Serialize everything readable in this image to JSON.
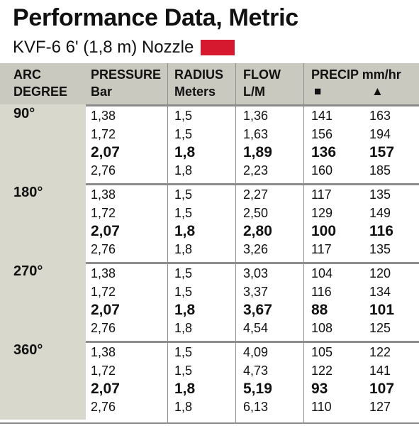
{
  "title": "Performance Data, Metric",
  "subtitle": "KVF-6  6' (1,8 m) Nozzle",
  "nozzle_color": "#d6192f",
  "header": {
    "arc": [
      "ARC",
      "DEGREE"
    ],
    "pressure": [
      "PRESSURE",
      "Bar"
    ],
    "radius": [
      "RADIUS",
      "Meters"
    ],
    "flow": [
      "FLOW",
      "L/M"
    ],
    "precip": "PRECIP mm/hr",
    "square_symbol": "■",
    "triangle_symbol": "▲"
  },
  "groups": [
    {
      "arc": "90°",
      "rows": [
        {
          "pressure": "1,38",
          "radius": "1,5",
          "flow": "1,36",
          "square": "141",
          "triangle": "163",
          "bold": false
        },
        {
          "pressure": "1,72",
          "radius": "1,5",
          "flow": "1,63",
          "square": "156",
          "triangle": "194",
          "bold": false
        },
        {
          "pressure": "2,07",
          "radius": "1,8",
          "flow": "1,89",
          "square": "136",
          "triangle": "157",
          "bold": true
        },
        {
          "pressure": "2,76",
          "radius": "1,8",
          "flow": "2,23",
          "square": "160",
          "triangle": "185",
          "bold": false
        }
      ]
    },
    {
      "arc": "180°",
      "rows": [
        {
          "pressure": "1,38",
          "radius": "1,5",
          "flow": "2,27",
          "square": "117",
          "triangle": "135",
          "bold": false
        },
        {
          "pressure": "1,72",
          "radius": "1,5",
          "flow": "2,50",
          "square": "129",
          "triangle": "149",
          "bold": false
        },
        {
          "pressure": "2,07",
          "radius": "1,8",
          "flow": "2,80",
          "square": "100",
          "triangle": "116",
          "bold": true
        },
        {
          "pressure": "2,76",
          "radius": "1,8",
          "flow": "3,26",
          "square": "117",
          "triangle": "135",
          "bold": false
        }
      ]
    },
    {
      "arc": "270°",
      "rows": [
        {
          "pressure": "1,38",
          "radius": "1,5",
          "flow": "3,03",
          "square": "104",
          "triangle": "120",
          "bold": false
        },
        {
          "pressure": "1,72",
          "radius": "1,5",
          "flow": "3,37",
          "square": "116",
          "triangle": "134",
          "bold": false
        },
        {
          "pressure": "2,07",
          "radius": "1,8",
          "flow": "3,67",
          "square": "88",
          "triangle": "101",
          "bold": true
        },
        {
          "pressure": "2,76",
          "radius": "1,8",
          "flow": "4,54",
          "square": "108",
          "triangle": "125",
          "bold": false
        }
      ]
    },
    {
      "arc": "360°",
      "rows": [
        {
          "pressure": "1,38",
          "radius": "1,5",
          "flow": "4,09",
          "square": "105",
          "triangle": "122",
          "bold": false
        },
        {
          "pressure": "1,72",
          "radius": "1,5",
          "flow": "4,73",
          "square": "122",
          "triangle": "141",
          "bold": false
        },
        {
          "pressure": "2,07",
          "radius": "1,8",
          "flow": "5,19",
          "square": "93",
          "triangle": "107",
          "bold": true
        },
        {
          "pressure": "2,76",
          "radius": "1,8",
          "flow": "6,13",
          "square": "110",
          "triangle": "127",
          "bold": false
        }
      ]
    }
  ]
}
